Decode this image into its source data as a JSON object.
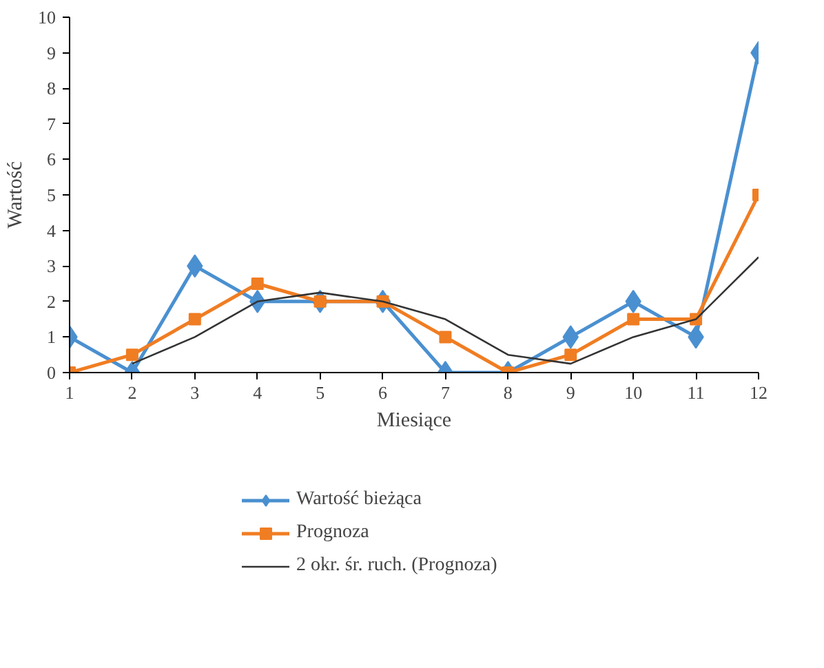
{
  "chart_data": {
    "type": "line",
    "xlabel": "Miesiące",
    "ylabel": "Wartość",
    "x": [
      1,
      2,
      3,
      4,
      5,
      6,
      7,
      8,
      9,
      10,
      11,
      12
    ],
    "xlim": [
      1,
      12
    ],
    "xticks": [
      1,
      2,
      3,
      4,
      5,
      6,
      7,
      8,
      9,
      10,
      11,
      12
    ],
    "ylim": [
      0,
      10
    ],
    "yticks": [
      0,
      1,
      2,
      3,
      4,
      5,
      6,
      7,
      8,
      9,
      10
    ],
    "grid": false,
    "legend": "bottom",
    "series": [
      {
        "name": "Wartość bieżąca",
        "color": "#4a90d0",
        "marker": "diamond",
        "values": [
          1,
          0,
          3,
          2,
          2,
          2,
          0,
          0,
          1,
          2,
          1,
          9
        ]
      },
      {
        "name": "Prognoza",
        "color": "#f07d22",
        "marker": "square",
        "values": [
          0,
          0.5,
          1.5,
          2.5,
          2,
          2,
          1,
          0,
          0.5,
          1.5,
          1.5,
          5
        ]
      },
      {
        "name": "2 okr. śr. ruch. (Prognoza)",
        "color": "#333333",
        "marker": "none",
        "values": [
          null,
          0.25,
          1,
          2,
          2.25,
          2,
          1.5,
          0.5,
          0.25,
          1,
          1.5,
          3.25
        ]
      }
    ]
  }
}
